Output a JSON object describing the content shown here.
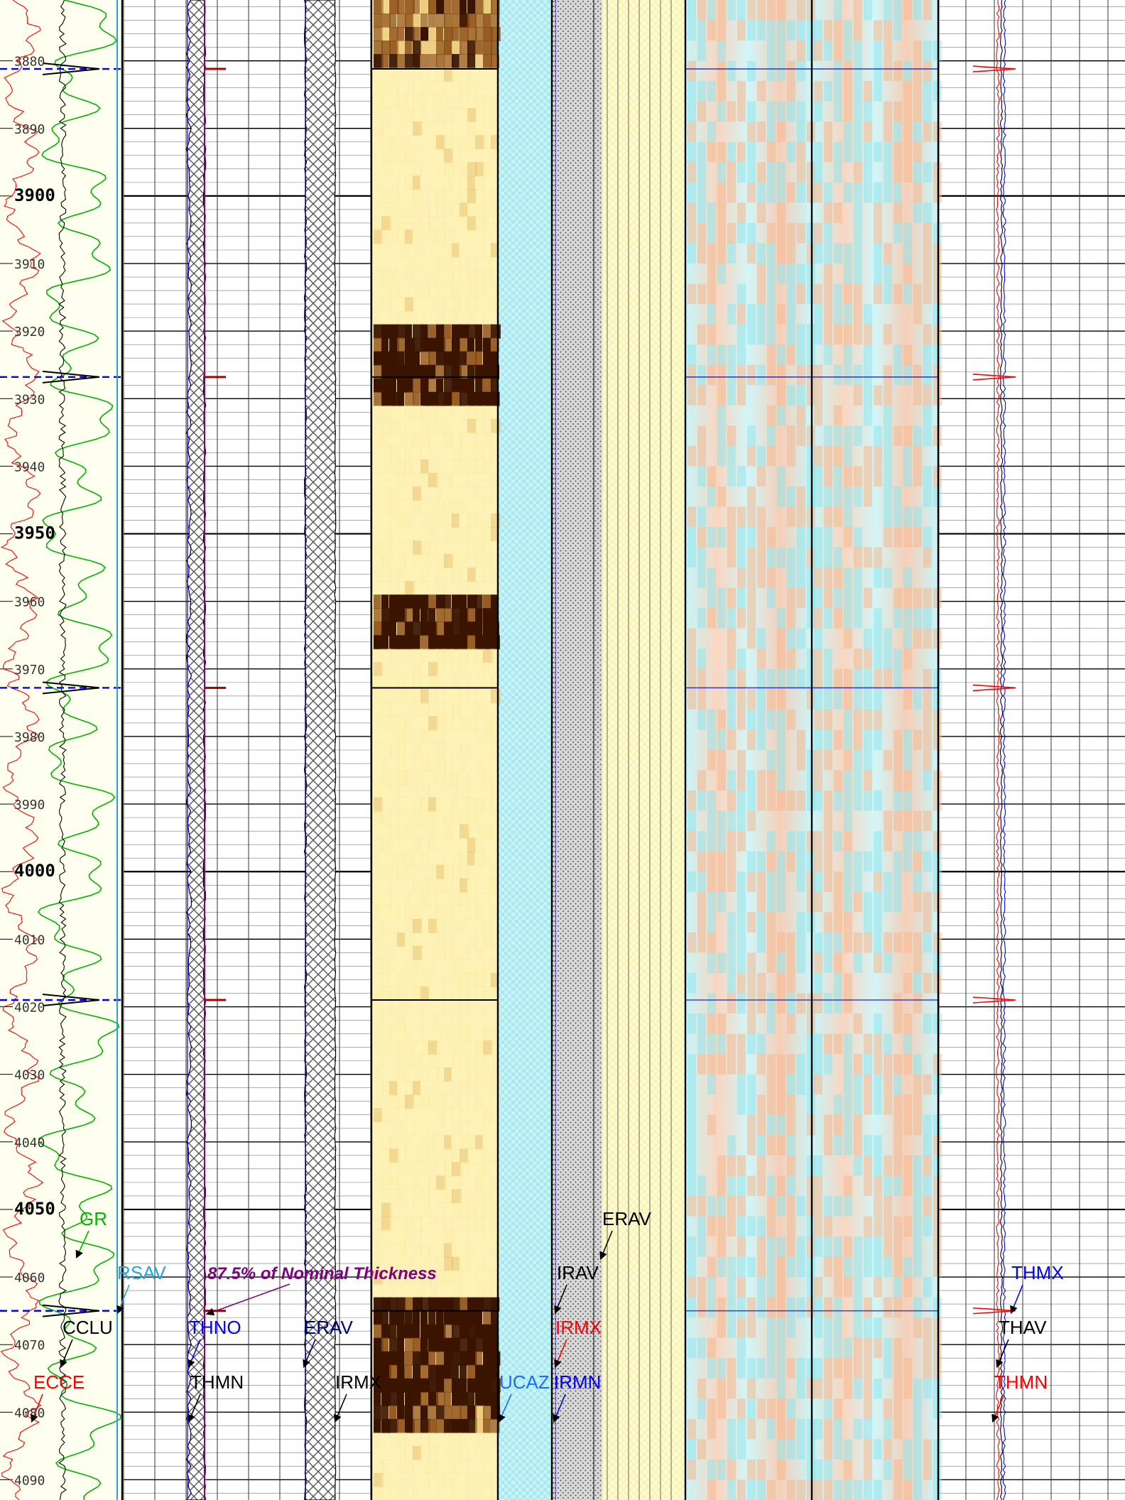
{
  "chart_data": {
    "type": "line",
    "depth_range": [
      3871,
      4093
    ],
    "depth_ticks": [
      3880,
      3890,
      3900,
      3910,
      3920,
      3930,
      3940,
      3950,
      3960,
      3970,
      3980,
      3990,
      4000,
      4010,
      4020,
      4030,
      4040,
      4050,
      4060,
      4070,
      4080,
      4090
    ],
    "depth_labels": [
      "3880",
      "3890",
      "3900",
      "3910",
      "3920",
      "3930",
      "3940",
      "3950",
      "3960",
      "3970",
      "3980",
      "3990",
      "4000",
      "4010",
      "4020",
      "4030",
      "4040",
      "4050",
      "4060",
      "4070",
      "4080",
      "4090"
    ],
    "collar_depths": [
      3881.2,
      3926.8,
      3972.8,
      4019.0,
      4065.0
    ],
    "grid": true,
    "annotation": "87.5% of Nominal Thickness",
    "curve_labels": {
      "gr": "GR",
      "rsav": "RSAV",
      "cclu": "CCLU",
      "ecce": "ECCE",
      "thno": "THNO",
      "thmn_left": "THMN",
      "erav_left": "ERAV",
      "irmx_left": "IRMX",
      "ucaz": "UCAZ",
      "irav": "IRAV",
      "irmx_mid": "IRMX",
      "irmn": "IRMN",
      "erav_mid": "ERAV",
      "thmx": "THMX",
      "thav": "THAV",
      "thmn_right": "THMN"
    },
    "colors": {
      "gr": "#00b400",
      "ecce": "#ff0000",
      "cclu": "#000000",
      "rsav": "#1fa8e0",
      "thno": "#0000ff",
      "thmn": "#000000",
      "nominal": "#800080",
      "image_dark": "#3a1400",
      "image_light": "#fff6c0",
      "cyan": "#bdf1f5",
      "salmon": "#f6c0a2",
      "thmx": "#0000ff",
      "thav": "#000000",
      "thmn_right": "#ff0000"
    }
  }
}
